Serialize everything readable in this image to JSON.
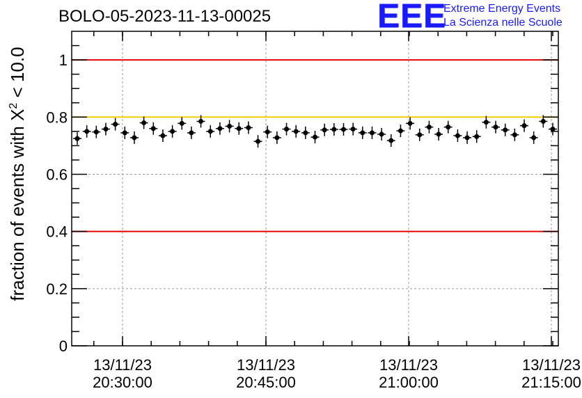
{
  "chart_data": {
    "type": "scatter",
    "title": "BOLO-05-2023-11-13-00025",
    "ylabel_main": "fraction of events with X",
    "ylabel_sup": "2",
    "ylabel_tail": " < 10.0",
    "xlabel": "",
    "ylim": [
      0,
      1.1
    ],
    "y_ticks": [
      "0",
      "0.2",
      "0.4",
      "0.6",
      "0.8",
      "1"
    ],
    "x_ticks": [
      {
        "date": "13/11/23",
        "time": "20:30:00"
      },
      {
        "date": "13/11/23",
        "time": "20:45:00"
      },
      {
        "date": "13/11/23",
        "time": "21:00:00"
      },
      {
        "date": "13/11/23",
        "time": "21:15:00"
      }
    ],
    "grid": true,
    "reference_lines": [
      {
        "y": 1.0,
        "color": "#e60000"
      },
      {
        "y": 0.8,
        "color": "#ffcc00"
      },
      {
        "y": 0.4,
        "color": "#e60000"
      }
    ],
    "series": [
      {
        "marker_color": "#000000",
        "points": [
          0.725,
          0.75,
          0.748,
          0.758,
          0.775,
          0.745,
          0.728,
          0.78,
          0.76,
          0.735,
          0.75,
          0.778,
          0.745,
          0.785,
          0.75,
          0.76,
          0.768,
          0.76,
          0.763,
          0.715,
          0.748,
          0.728,
          0.758,
          0.75,
          0.745,
          0.73,
          0.755,
          0.757,
          0.757,
          0.758,
          0.745,
          0.745,
          0.74,
          0.718,
          0.752,
          0.778,
          0.738,
          0.765,
          0.74,
          0.765,
          0.735,
          0.728,
          0.732,
          0.782,
          0.765,
          0.755,
          0.738,
          0.77,
          0.728,
          0.785,
          0.758
        ]
      }
    ]
  },
  "logo": {
    "mark": "EEE",
    "line1": "Extreme Energy Events",
    "line2": "La Scienza nelle Scuole"
  }
}
